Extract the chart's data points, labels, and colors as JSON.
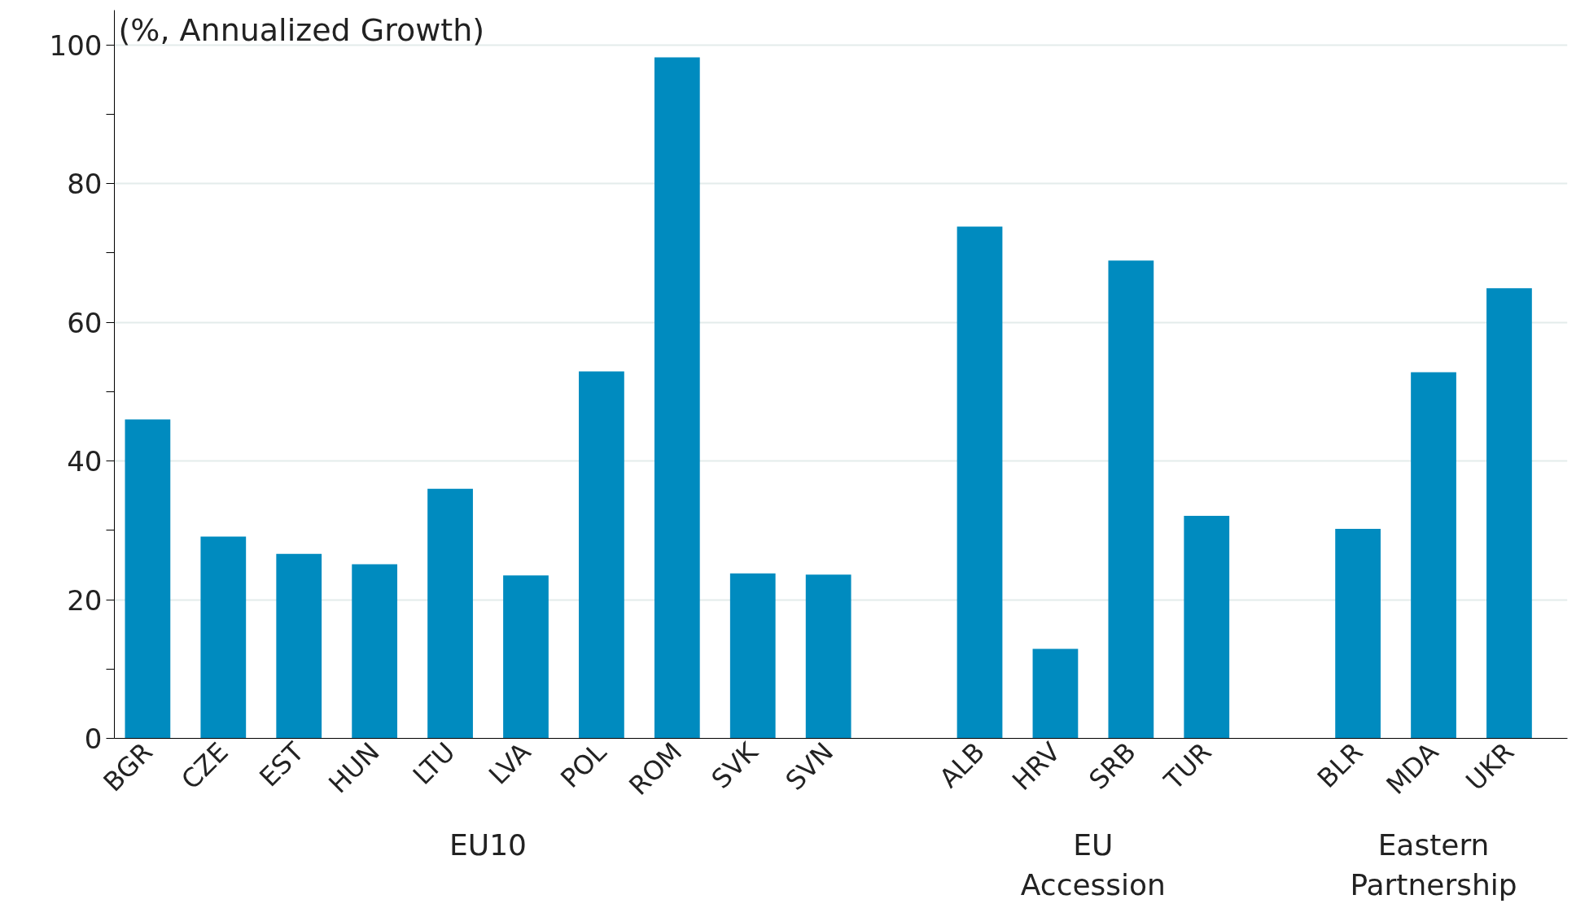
{
  "chart_data": {
    "type": "bar",
    "title": "(%, Annualized Growth)",
    "categories": [
      "BGR",
      "CZE",
      "EST",
      "HUN",
      "LTU",
      "LVA",
      "POL",
      "ROM",
      "SVK",
      "SVN",
      null,
      "ALB",
      "HRV",
      "SRB",
      "TUR",
      null,
      "BLR",
      "MDA",
      "UKR"
    ],
    "values": [
      46,
      29.1,
      26.6,
      25.1,
      36,
      23.5,
      52.9,
      98.2,
      23.8,
      23.6,
      null,
      73.8,
      12.9,
      68.9,
      32.1,
      null,
      30.2,
      52.8,
      64.9
    ],
    "color": "#008bbf",
    "ylim": [
      0,
      105
    ],
    "yticks": [
      0,
      {
        "value": 10,
        "label": null
      },
      20,
      {
        "value": 30,
        "label": null
      },
      40,
      {
        "value": 50,
        "label": null
      },
      60,
      {
        "value": 70,
        "label": null
      },
      80,
      {
        "value": 90,
        "label": null
      },
      100
    ],
    "grid": "y",
    "annotations": [
      "EU10",
      "EU\nAccession",
      "Eastern\nPartnership"
    ]
  }
}
